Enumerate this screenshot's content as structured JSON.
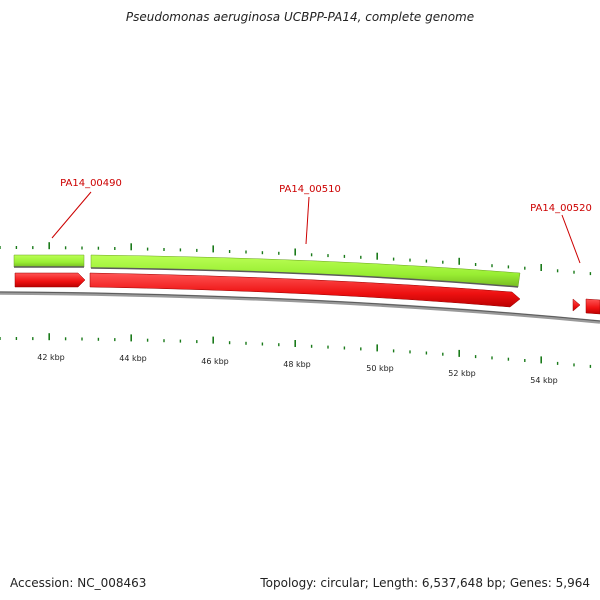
{
  "title": "Pseudomonas aeruginosa UCBPP-PA14, complete genome",
  "footer": {
    "accession": "Accession: NC_008463",
    "summary": "Topology: circular; Length: 6,537,648 bp; Genes: 5,964"
  },
  "axis": {
    "ticks": [
      "42 kbp",
      "44 kbp",
      "46 kbp",
      "48 kbp",
      "50 kbp",
      "52 kbp",
      "54 kbp"
    ]
  },
  "genes": [
    {
      "label": "PA14_00490"
    },
    {
      "label": "PA14_00510"
    },
    {
      "label": "PA14_00520"
    }
  ],
  "colors": {
    "gene_forward": "#99ee33",
    "gene_cds": "#ee1111",
    "label": "#cc0000",
    "tick": "#1a7a1a",
    "backbone": "#808080"
  }
}
